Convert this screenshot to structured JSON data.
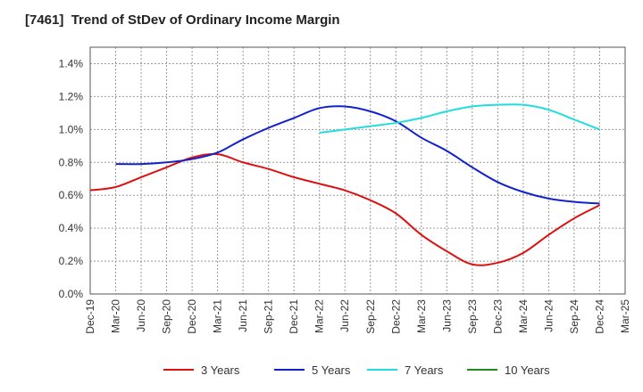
{
  "chart_data": {
    "type": "line",
    "title": "[7461]  Trend of StDev of Ordinary Income Margin",
    "xlabel": "",
    "ylabel": "",
    "x_labels": [
      "Dec-19",
      "Mar-20",
      "Jun-20",
      "Sep-20",
      "Dec-20",
      "Mar-21",
      "Jun-21",
      "Sep-21",
      "Dec-21",
      "Mar-22",
      "Jun-22",
      "Sep-22",
      "Dec-22",
      "Mar-23",
      "Jun-23",
      "Sep-23",
      "Dec-23",
      "Mar-24",
      "Jun-24",
      "Sep-24",
      "Dec-24",
      "Mar-25"
    ],
    "y_ticks": [
      "0.0%",
      "0.2%",
      "0.4%",
      "0.6%",
      "0.8%",
      "1.0%",
      "1.2%",
      "1.4%"
    ],
    "ylim": [
      0,
      1.5
    ],
    "grid": true,
    "legend_position": "bottom",
    "series": [
      {
        "name": "3 Years",
        "color": "#dd1111",
        "values": [
          0.63,
          0.65,
          0.71,
          0.77,
          0.83,
          0.85,
          0.8,
          0.76,
          0.71,
          0.67,
          0.63,
          0.57,
          0.49,
          0.36,
          0.26,
          0.18,
          0.19,
          0.25,
          0.36,
          0.46,
          0.54,
          null
        ]
      },
      {
        "name": "5 Years",
        "color": "#1122cc",
        "values": [
          null,
          0.79,
          0.79,
          0.8,
          0.82,
          0.86,
          0.94,
          1.01,
          1.07,
          1.13,
          1.14,
          1.11,
          1.05,
          0.95,
          0.87,
          0.77,
          0.68,
          0.62,
          0.58,
          0.56,
          0.55,
          null
        ]
      },
      {
        "name": "7 Years",
        "color": "#22dddd",
        "values": [
          null,
          null,
          null,
          null,
          null,
          null,
          null,
          null,
          null,
          0.98,
          1.0,
          1.02,
          1.04,
          1.07,
          1.11,
          1.14,
          1.15,
          1.15,
          1.12,
          1.06,
          1.0,
          null
        ]
      },
      {
        "name": "10 Years",
        "color": "#228822",
        "values": [
          null,
          null,
          null,
          null,
          null,
          null,
          null,
          null,
          null,
          null,
          null,
          null,
          null,
          null,
          null,
          null,
          null,
          null,
          null,
          null,
          null,
          null
        ]
      }
    ]
  }
}
